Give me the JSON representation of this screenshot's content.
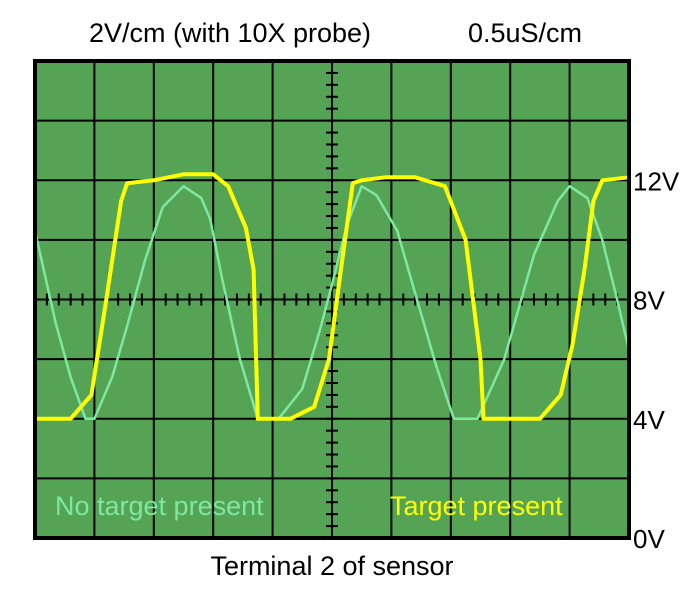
{
  "header": {
    "vertical_scale": "2V/cm (with 10X probe)",
    "time_scale": "0.5uS/cm"
  },
  "footer": {
    "caption": "Terminal 2 of sensor"
  },
  "annotations": {
    "no_target": "No target present",
    "target": "Target present"
  },
  "colors": {
    "screen": "#55A455",
    "grid": "#000000",
    "no_target_trace": "#7FE8A0",
    "target_trace": "#FFFF00",
    "border": "#000000"
  },
  "chart_data": {
    "type": "line",
    "title": "",
    "xlabel": "Terminal 2 of sensor",
    "ylabel": "",
    "ylim": [
      0,
      16
    ],
    "xlim": [
      0,
      10
    ],
    "grid": true,
    "y_tick_labels": [
      {
        "value": 0,
        "label": "0V"
      },
      {
        "value": 4,
        "label": "4V"
      },
      {
        "value": 8,
        "label": "8V"
      },
      {
        "value": 12,
        "label": "12V"
      }
    ],
    "series": [
      {
        "name": "No target present",
        "color": "#7FE8A0",
        "points": [
          [
            0.0,
            10.3
          ],
          [
            0.35,
            7.2
          ],
          [
            0.6,
            5.4
          ],
          [
            0.85,
            4.0
          ],
          [
            1.0,
            4.0
          ],
          [
            1.3,
            5.4
          ],
          [
            1.55,
            7.1
          ],
          [
            1.85,
            9.3
          ],
          [
            2.15,
            11.1
          ],
          [
            2.5,
            11.8
          ],
          [
            2.8,
            11.4
          ],
          [
            2.95,
            10.7
          ],
          [
            3.15,
            8.7
          ],
          [
            3.45,
            6.0
          ],
          [
            3.75,
            4.0
          ],
          [
            4.1,
            4.0
          ],
          [
            4.5,
            5.0
          ],
          [
            4.8,
            7.0
          ],
          [
            5.0,
            8.5
          ],
          [
            5.25,
            10.5
          ],
          [
            5.5,
            11.8
          ],
          [
            5.75,
            11.5
          ],
          [
            6.1,
            10.3
          ],
          [
            6.4,
            8.2
          ],
          [
            6.75,
            5.8
          ],
          [
            7.05,
            4.0
          ],
          [
            7.45,
            4.0
          ],
          [
            7.9,
            6.0
          ],
          [
            8.4,
            9.5
          ],
          [
            8.8,
            11.3
          ],
          [
            9.0,
            11.8
          ],
          [
            9.3,
            11.4
          ],
          [
            9.55,
            10.0
          ],
          [
            9.8,
            8.0
          ],
          [
            10.0,
            6.3
          ]
        ]
      },
      {
        "name": "Target present",
        "color": "#FFFF00",
        "points": [
          [
            0.0,
            4.0
          ],
          [
            0.6,
            4.0
          ],
          [
            0.95,
            4.8
          ],
          [
            1.2,
            8.0
          ],
          [
            1.45,
            11.3
          ],
          [
            1.55,
            11.9
          ],
          [
            2.0,
            12.0
          ],
          [
            2.5,
            12.2
          ],
          [
            3.0,
            12.2
          ],
          [
            3.25,
            11.8
          ],
          [
            3.55,
            10.4
          ],
          [
            3.68,
            9.0
          ],
          [
            3.75,
            4.0
          ],
          [
            3.8,
            4.0
          ],
          [
            4.3,
            4.0
          ],
          [
            4.7,
            4.4
          ],
          [
            4.95,
            6.0
          ],
          [
            5.15,
            9.0
          ],
          [
            5.35,
            11.9
          ],
          [
            5.5,
            12.0
          ],
          [
            5.9,
            12.1
          ],
          [
            6.4,
            12.1
          ],
          [
            6.9,
            11.8
          ],
          [
            7.25,
            10.0
          ],
          [
            7.5,
            6.0
          ],
          [
            7.55,
            4.0
          ],
          [
            7.65,
            4.0
          ],
          [
            8.5,
            4.0
          ],
          [
            8.85,
            4.8
          ],
          [
            9.05,
            6.5
          ],
          [
            9.25,
            9.0
          ],
          [
            9.4,
            11.3
          ],
          [
            9.55,
            12.0
          ],
          [
            10.0,
            12.1
          ]
        ]
      }
    ]
  }
}
